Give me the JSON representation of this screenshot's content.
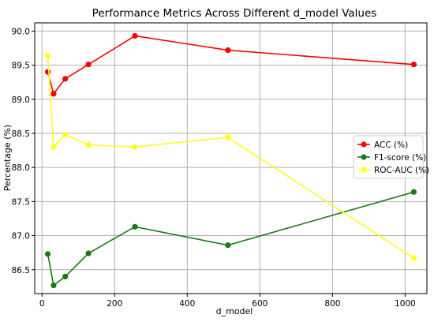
{
  "chart_data": {
    "type": "line",
    "title": "Performance Metrics Across Different d_model Values",
    "xlabel": "d_model",
    "ylabel": "Percentage (%)",
    "xlim": [
      -20,
      1060
    ],
    "ylim": [
      86.15,
      90.12
    ],
    "xticks": [
      0,
      200,
      400,
      600,
      800,
      1000
    ],
    "yticks": [
      86.5,
      87.0,
      87.5,
      88.0,
      88.5,
      89.0,
      89.5,
      90.0
    ],
    "ytick_labels": [
      "86.5",
      "87.0",
      "87.5",
      "88.0",
      "88.5",
      "89.0",
      "89.5",
      "90.0"
    ],
    "grid": true,
    "legend_position": "right",
    "x": [
      16,
      32,
      64,
      128,
      256,
      512,
      1024
    ],
    "series": [
      {
        "name": "ACC (%)",
        "color": "#ff0000",
        "values": [
          89.4,
          89.08,
          89.3,
          89.51,
          89.93,
          89.72,
          89.51
        ]
      },
      {
        "name": "F1-score (%)",
        "color": "#1a7a12",
        "values": [
          86.73,
          86.27,
          86.4,
          86.74,
          87.13,
          86.86,
          87.64
        ]
      },
      {
        "name": "ROC-AUC (%)",
        "color": "#ffff22",
        "values": [
          89.64,
          88.3,
          88.48,
          88.33,
          88.3,
          88.44,
          86.67
        ]
      }
    ]
  }
}
